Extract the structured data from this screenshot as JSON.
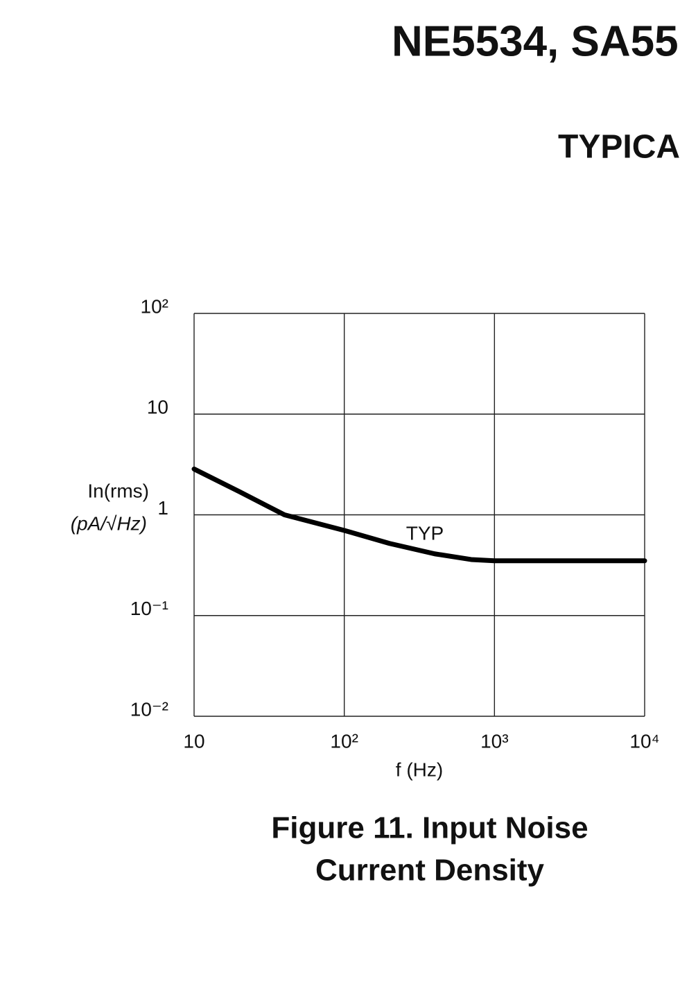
{
  "header": {
    "title": "NE5534, SA55",
    "section": "TYPICA"
  },
  "chart_data": {
    "type": "line",
    "ylabel": [
      "In(rms)",
      "(pA/√Hz)"
    ],
    "xlabel": "f (Hz)",
    "annotation": "TYP",
    "caption": [
      "Figure 11. Input Noise",
      "Current Density"
    ],
    "x": [
      10,
      20,
      40,
      100,
      200,
      400,
      700,
      1000,
      3000,
      10000
    ],
    "series": [
      {
        "name": "TYP",
        "color": "#000000",
        "values": [
          2.85,
          1.7,
          1.0,
          0.7,
          0.52,
          0.41,
          0.36,
          0.35,
          0.35,
          0.35
        ]
      }
    ],
    "xlim": [
      10,
      10000
    ],
    "ylim": [
      0.01,
      100
    ],
    "xscale": "log",
    "yscale": "log",
    "xticks": [
      10,
      {
        "value": 100,
        "label": "10²"
      },
      {
        "value": 1000,
        "label": "10³"
      },
      {
        "value": 10000,
        "label": "10⁴"
      }
    ],
    "yticks": [
      {
        "value": 0.01,
        "label": "10⁻²"
      },
      {
        "value": 0.1,
        "label": "10⁻¹"
      },
      1,
      10,
      {
        "value": 100,
        "label": "10²"
      }
    ],
    "grid": true
  }
}
